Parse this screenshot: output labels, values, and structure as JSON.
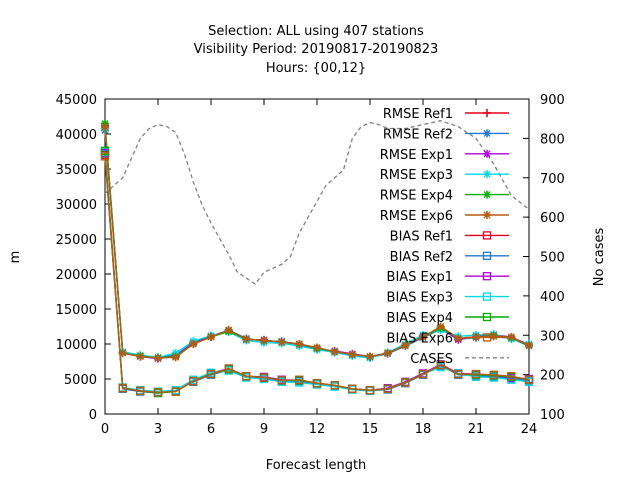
{
  "chart_data": {
    "type": "line",
    "title_lines": [
      "Selection: ALL using   407 stations",
      "Visibility   Period: 20190817-20190823",
      "Hours: {00,12}"
    ],
    "xlabel": "Forecast length",
    "ylabel": "m",
    "y2label": "No cases",
    "xlim": [
      0,
      24
    ],
    "ylim": [
      0,
      45000
    ],
    "y2lim": [
      100,
      900
    ],
    "x_ticks": [
      0,
      3,
      6,
      9,
      12,
      15,
      18,
      21,
      24
    ],
    "y_ticks": [
      0,
      5000,
      10000,
      15000,
      20000,
      25000,
      30000,
      35000,
      40000,
      45000
    ],
    "y2_ticks": [
      100,
      200,
      300,
      400,
      500,
      600,
      700,
      800,
      900
    ],
    "grid": false,
    "legend_position": "top-right",
    "x": [
      0,
      1,
      2,
      3,
      4,
      5,
      6,
      7,
      8,
      9,
      10,
      11,
      12,
      13,
      14,
      15,
      16,
      17,
      18,
      19,
      20,
      21,
      22,
      23,
      24
    ],
    "series": [
      {
        "name": "RMSE Ref1",
        "color": "#e8001c",
        "marker": "plus",
        "values": [
          41000,
          8700,
          8200,
          8000,
          8300,
          10000,
          11000,
          11900,
          10700,
          10500,
          10300,
          10000,
          9400,
          8900,
          8500,
          8200,
          8700,
          9800,
          11000,
          12300,
          10800,
          11000,
          11200,
          10900,
          9800
        ]
      },
      {
        "name": "RMSE Ref2",
        "color": "#1f77d0",
        "marker": "star",
        "values": [
          40500,
          8800,
          8300,
          8100,
          8400,
          10200,
          11100,
          12000,
          10800,
          10400,
          10400,
          9900,
          9300,
          8800,
          8400,
          8100,
          8600,
          9700,
          10900,
          12100,
          10700,
          10900,
          11100,
          10800,
          9700
        ]
      },
      {
        "name": "RMSE Exp1",
        "color": "#b000e0",
        "marker": "star",
        "values": [
          41200,
          8800,
          8200,
          7900,
          8300,
          10100,
          11100,
          11800,
          10600,
          10600,
          10200,
          10000,
          9300,
          9000,
          8600,
          8200,
          8700,
          9800,
          11100,
          12200,
          10600,
          11100,
          11300,
          11000,
          9900
        ]
      },
      {
        "name": "RMSE Exp3",
        "color": "#00d8e8",
        "marker": "star",
        "values": [
          40800,
          8900,
          8400,
          8100,
          8700,
          10400,
          11200,
          11700,
          10500,
          10200,
          10100,
          9700,
          9200,
          8800,
          8300,
          8000,
          8800,
          10000,
          11300,
          12000,
          11100,
          11300,
          11400,
          10700,
          10000
        ]
      },
      {
        "name": "RMSE Exp4",
        "color": "#00b000",
        "marker": "star",
        "values": [
          41500,
          8700,
          8300,
          8000,
          8200,
          10000,
          11000,
          11800,
          10700,
          10500,
          10300,
          10000,
          9400,
          8900,
          8500,
          8200,
          8700,
          9800,
          11000,
          12300,
          10800,
          11000,
          11200,
          10900,
          9800
        ]
      },
      {
        "name": "RMSE Exp6",
        "color": "#b85a10",
        "marker": "star",
        "values": [
          41000,
          8700,
          8200,
          8000,
          8100,
          10000,
          11000,
          12000,
          10700,
          10500,
          10300,
          10000,
          9500,
          8900,
          8500,
          8200,
          8700,
          9800,
          11000,
          12500,
          10800,
          11000,
          11100,
          11000,
          9800
        ]
      },
      {
        "name": "BIAS Ref1",
        "color": "#e8001c",
        "marker": "square",
        "values": [
          37000,
          3700,
          3300,
          3100,
          3200,
          4700,
          5700,
          6400,
          5400,
          5200,
          4800,
          4800,
          4400,
          4100,
          3600,
          3400,
          3600,
          4500,
          5700,
          7000,
          5700,
          5600,
          5500,
          5300,
          4900
        ]
      },
      {
        "name": "BIAS Ref2",
        "color": "#1f77d0",
        "marker": "square",
        "values": [
          37200,
          3600,
          3200,
          3000,
          3300,
          4600,
          5600,
          6300,
          5300,
          5100,
          4700,
          4700,
          4300,
          4000,
          3500,
          3300,
          3500,
          4400,
          5600,
          6900,
          5600,
          5500,
          5300,
          5100,
          4800
        ]
      },
      {
        "name": "BIAS Exp1",
        "color": "#b000e0",
        "marker": "square",
        "values": [
          37300,
          3700,
          3300,
          3100,
          3300,
          4700,
          5800,
          6500,
          5400,
          5300,
          4900,
          4800,
          4400,
          4100,
          3600,
          3400,
          3700,
          4600,
          5800,
          7100,
          5800,
          5700,
          5500,
          5200,
          5000
        ]
      },
      {
        "name": "BIAS Exp3",
        "color": "#00d8e8",
        "marker": "square",
        "values": [
          37500,
          3800,
          3400,
          3200,
          3400,
          4900,
          5900,
          6200,
          5200,
          5000,
          4600,
          4500,
          4200,
          3900,
          3500,
          3300,
          3600,
          4500,
          5700,
          6700,
          5800,
          5300,
          5200,
          4900,
          4600
        ]
      },
      {
        "name": "BIAS Exp4",
        "color": "#00b000",
        "marker": "square",
        "values": [
          37600,
          3700,
          3300,
          3000,
          3200,
          4700,
          5700,
          6400,
          5400,
          5200,
          4800,
          4800,
          4400,
          4100,
          3600,
          3400,
          3600,
          4500,
          5700,
          7000,
          5700,
          5600,
          5500,
          5300,
          4900
        ]
      },
      {
        "name": "BIAS Exp6",
        "color": "#b85a10",
        "marker": "square",
        "values": [
          36800,
          3700,
          3300,
          3100,
          3200,
          4700,
          5700,
          6500,
          5400,
          5200,
          4800,
          4900,
          4400,
          4100,
          3600,
          3400,
          3600,
          4500,
          5700,
          7000,
          5700,
          5700,
          5600,
          5400,
          4900
        ]
      }
    ],
    "cases": {
      "name": "CASES",
      "color": "#808080",
      "axis": "y2",
      "x": [
        0,
        1,
        2,
        2.5,
        3,
        3.5,
        4,
        4.5,
        5,
        5.5,
        6,
        6.5,
        7,
        7.5,
        8,
        8.5,
        9,
        9.5,
        10,
        10.5,
        11,
        11.5,
        12,
        12.5,
        13,
        13.5,
        14,
        14.5,
        15,
        15.5,
        16,
        17,
        18,
        19,
        20,
        21,
        22,
        23,
        24
      ],
      "values": [
        660,
        700,
        800,
        825,
        835,
        830,
        815,
        760,
        690,
        630,
        585,
        545,
        505,
        460,
        445,
        430,
        460,
        470,
        480,
        500,
        560,
        600,
        640,
        680,
        700,
        720,
        800,
        830,
        840,
        835,
        825,
        825,
        835,
        845,
        830,
        800,
        735,
        655,
        620
      ]
    }
  }
}
